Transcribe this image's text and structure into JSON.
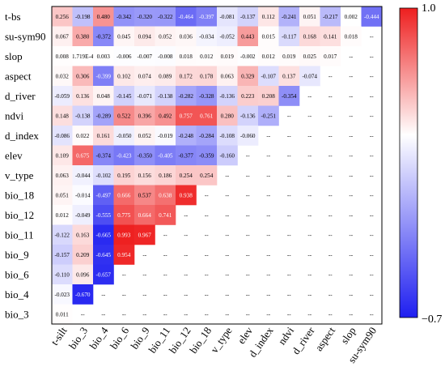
{
  "chart_data": {
    "type": "heatmap",
    "row_labels": [
      "t-bs",
      "su-sym90",
      "slop",
      "aspect",
      "d_river",
      "ndvi",
      "d_index",
      "elev",
      "v_type",
      "bio_18",
      "bio_12",
      "bio_11",
      "bio_9",
      "bio_6",
      "bio_4",
      "bio_3"
    ],
    "col_labels": [
      "t-silt",
      "bio_3",
      "bio_4",
      "bio_6",
      "bio_9",
      "bio_11",
      "bio_12",
      "bio_18",
      "v_type",
      "elev",
      "d_index",
      "ndvi",
      "d_river",
      "aspect",
      "slop",
      "su-sym90"
    ],
    "values": [
      [
        "0.256",
        "-0.198",
        "0.480",
        "-0.342",
        "-0.320",
        "-0.322",
        "-0.464",
        "-0.397",
        "-0.081",
        "-0.137",
        "0.112",
        "-0.241",
        "0.051",
        "-0.217",
        "0.002",
        "-0.444"
      ],
      [
        "0.067",
        "0.380",
        "-0.372",
        "0.045",
        "0.094",
        "0.052",
        "0.036",
        "-0.034",
        "-0.052",
        "0.443",
        "0.015",
        "-0.117",
        "0.168",
        "0.141",
        "0.018",
        "--"
      ],
      [
        "0.008",
        "1.719E-4",
        "0.003",
        "-0.006",
        "-0.007",
        "-0.008",
        "0.018",
        "0.012",
        "0.019",
        "-0.002",
        "0.012",
        "0.019",
        "0.025",
        "0.017",
        "--",
        "--"
      ],
      [
        "0.032",
        "0.306",
        "-0.399",
        "0.102",
        "0.074",
        "0.089",
        "0.172",
        "0.178",
        "0.063",
        "0.329",
        "-0.107",
        "0.137",
        "-0.074",
        "--",
        "--",
        "--"
      ],
      [
        "-0.059",
        "0.136",
        "0.048",
        "-0.145",
        "-0.071",
        "-0.138",
        "-0.282",
        "-0.328",
        "-0.136",
        "0.223",
        "0.208",
        "-0.354",
        "--",
        "--",
        "--",
        "--"
      ],
      [
        "0.148",
        "-0.138",
        "-0.289",
        "0.522",
        "0.396",
        "0.492",
        "0.757",
        "0.761",
        "0.280",
        "-0.136",
        "-0.251",
        "--",
        "--",
        "--",
        "--",
        "--"
      ],
      [
        "-0.086",
        "0.022",
        "0.161",
        "-0.050",
        "0.052",
        "-0.019",
        "-0.248",
        "-0.284",
        "-0.108",
        "-0.060",
        "--",
        "--",
        "--",
        "--",
        "--",
        "--"
      ],
      [
        "0.109",
        "0.675",
        "-0.374",
        "-0.423",
        "-0.350",
        "-0.405",
        "-0.377",
        "-0.359",
        "-0.160",
        "--",
        "--",
        "--",
        "--",
        "--",
        "--",
        "--"
      ],
      [
        "0.063",
        "-0.044",
        "-0.102",
        "0.195",
        "0.156",
        "0.186",
        "0.254",
        "0.254",
        "--",
        "--",
        "--",
        "--",
        "--",
        "--",
        "--",
        "--"
      ],
      [
        "0.051",
        "-0.014",
        "-0.497",
        "0.666",
        "0.537",
        "0.638",
        "0.938",
        "--",
        "--",
        "--",
        "--",
        "--",
        "--",
        "--",
        "--",
        "--"
      ],
      [
        "0.012",
        "-0.049",
        "-0.555",
        "0.775",
        "0.664",
        "0.741",
        "--",
        "--",
        "--",
        "--",
        "--",
        "--",
        "--",
        "--",
        "--",
        "--"
      ],
      [
        "-0.122",
        "0.163",
        "-0.665",
        "0.993",
        "0.967",
        "--",
        "--",
        "--",
        "--",
        "--",
        "--",
        "--",
        "--",
        "--",
        "--",
        "--"
      ],
      [
        "-0.157",
        "0.209",
        "-0.645",
        "0.954",
        "--",
        "--",
        "--",
        "--",
        "--",
        "--",
        "--",
        "--",
        "--",
        "--",
        "--",
        "--"
      ],
      [
        "-0.110",
        "0.096",
        "-0.657",
        "--",
        "--",
        "--",
        "--",
        "--",
        "--",
        "--",
        "--",
        "--",
        "--",
        "--",
        "--",
        "--"
      ],
      [
        "-0.023",
        "-0.670",
        "--",
        "--",
        "--",
        "--",
        "--",
        "--",
        "--",
        "--",
        "--",
        "--",
        "--",
        "--",
        "--",
        "--"
      ],
      [
        "0.011",
        "--",
        "--",
        "--",
        "--",
        "--",
        "--",
        "--",
        "--",
        "--",
        "--",
        "--",
        "--",
        "--",
        "--",
        "--"
      ]
    ],
    "colorbar": {
      "min": -0.7,
      "max": 1.0,
      "min_label": "−0.7",
      "max_label": "1.0",
      "colors": {
        "low": "#1f1ff0",
        "mid": "#ffffff",
        "high": "#ee1f1f"
      }
    },
    "title": "",
    "xlabel": "",
    "ylabel": ""
  }
}
